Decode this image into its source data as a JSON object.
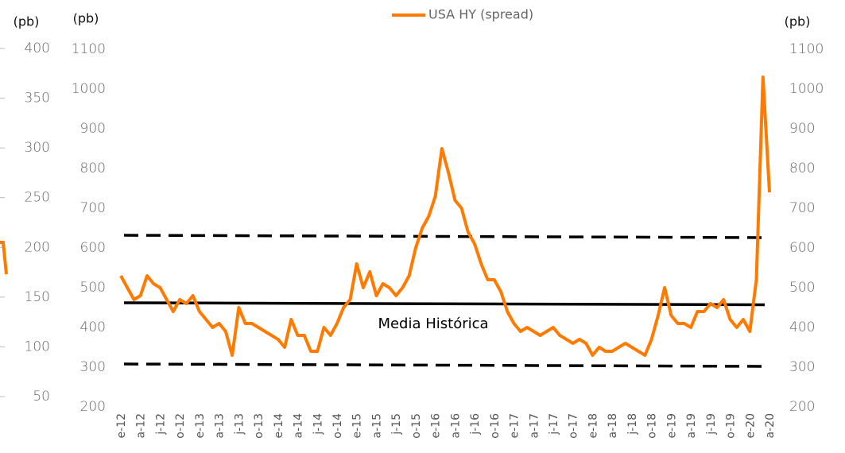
{
  "chart_data": [
    {
      "type": "line",
      "legend_position": "top",
      "y_label": "(pb)",
      "y2_label": "(pb)",
      "categories": [
        "e-12",
        null,
        null,
        "a-12",
        null,
        null,
        "j-12",
        null,
        null,
        "o-12",
        null,
        null,
        "e-13",
        null,
        null,
        "a-13",
        null,
        null,
        "j-13",
        null,
        null,
        "o-13",
        null,
        null,
        "e-14",
        null,
        null,
        "a-14",
        null,
        null,
        "j-14",
        null,
        null,
        "o-14",
        null,
        null,
        "e-15",
        null,
        null,
        "a-15",
        null,
        null,
        "j-15",
        null,
        null,
        "o-15",
        null,
        null,
        "e-16",
        null,
        null,
        "a-16",
        null,
        null,
        "j-16",
        null,
        null,
        "o-16",
        null,
        null,
        "e-17",
        null,
        null,
        "a-17",
        null,
        null,
        "j-17",
        null,
        null,
        "o-17",
        null,
        null,
        "e-18",
        null,
        null,
        "a-18",
        null,
        null,
        "j-18",
        null,
        null,
        "o-18",
        null,
        null,
        "e-19",
        null,
        null,
        "a-19",
        null,
        null,
        "j-19",
        null,
        null,
        "o-19",
        null,
        null,
        "e-20",
        null,
        null,
        "a-20"
      ],
      "series": [
        {
          "name": "USA HY (spread)",
          "color": "#ff7a00",
          "values": [
            530,
            500,
            470,
            480,
            530,
            510,
            500,
            470,
            440,
            470,
            460,
            480,
            440,
            420,
            400,
            410,
            390,
            330,
            450,
            410,
            410,
            400,
            390,
            380,
            370,
            350,
            420,
            380,
            380,
            340,
            340,
            400,
            380,
            410,
            450,
            470,
            560,
            500,
            540,
            480,
            510,
            500,
            480,
            500,
            530,
            600,
            650,
            680,
            730,
            850,
            790,
            720,
            700,
            640,
            610,
            560,
            520,
            520,
            490,
            440,
            410,
            390,
            400,
            390,
            380,
            390,
            400,
            380,
            370,
            360,
            370,
            360,
            330,
            350,
            340,
            340,
            350,
            360,
            350,
            340,
            330,
            370,
            430,
            500,
            430,
            410,
            410,
            400,
            440,
            440,
            460,
            450,
            470,
            420,
            400,
            420,
            390,
            520,
            1030,
            740
          ]
        }
      ],
      "reference_lines": [
        {
          "label": "Media Histórica",
          "values": [
            462,
            457
          ],
          "style": "solid",
          "color": "#000000"
        },
        {
          "values": [
            632,
            626
          ],
          "style": "dashed",
          "color": "#000000"
        },
        {
          "values": [
            308,
            302
          ],
          "style": "dashed",
          "color": "#000000"
        }
      ],
      "ylim": [
        200,
        1100
      ],
      "yticks": [
        200,
        300,
        400,
        500,
        600,
        700,
        800,
        900,
        1000,
        1100
      ],
      "y2lim": [
        200,
        1100
      ],
      "y2ticks": [
        200,
        300,
        400,
        500,
        600,
        700,
        800,
        900,
        1000,
        1100
      ],
      "grid": false
    },
    {
      "type": "line",
      "y_label": "(pb)",
      "series": [
        {
          "color": "#ff7a00",
          "values": [
            205,
            205,
            173
          ]
        }
      ],
      "ylim": [
        50,
        400
      ],
      "yticks": [
        400,
        350,
        300,
        250,
        200,
        150,
        100,
        50
      ],
      "grid": false
    }
  ]
}
